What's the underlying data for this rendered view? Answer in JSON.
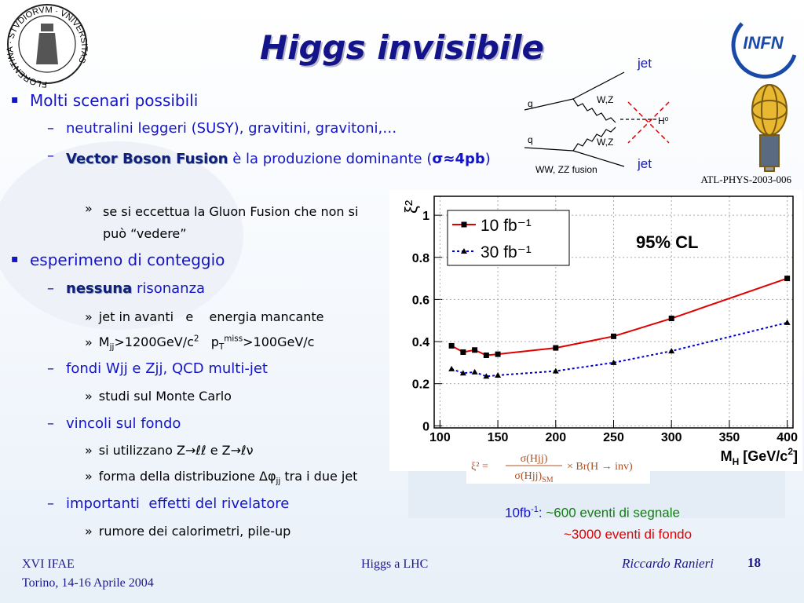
{
  "header": {
    "title": "Higgs invisibile"
  },
  "markers": {
    "l1": "▪",
    "l2": "–",
    "l3": "»"
  },
  "bullets": [
    {
      "text": "Molti scenari possibili"
    },
    {
      "text": "neutralini leggeri (SUSY), gravitini, gravitoni,…"
    },
    {
      "parts": [
        "Vector Boson Fusion",
        " è la produzione dominante (",
        "σ≈4pb",
        ")"
      ]
    },
    {
      "text": "se si eccettua la Gluon Fusion che non si può “vedere”"
    },
    {
      "text": "esperimeno di conteggio"
    },
    {
      "parts": [
        "nessuna",
        " risonanza"
      ]
    },
    {
      "text": "jet in avanti   e    energia mancante"
    },
    {
      "parts": [
        "M",
        "jj",
        ">1200GeV/c",
        "2",
        "   p",
        "T",
        "miss",
        ">100GeV/c"
      ]
    },
    {
      "text": "fondi Wjj e Zjj, QCD multi-jet"
    },
    {
      "text": "studi sul Monte Carlo"
    },
    {
      "text": "vincoli sul fondo"
    },
    {
      "text": "si utilizzano Z→ℓℓ e Z→ℓν"
    },
    {
      "parts": [
        "forma della distribuzione Δφ",
        "jj",
        " tra i due jet"
      ]
    },
    {
      "text": "importanti  effetti del rivelatore"
    },
    {
      "text": "rumore dei calorimetri, pile-up"
    }
  ],
  "diagram": {
    "labels": [
      "jet",
      "q",
      "W,Z",
      "H⁰",
      "q",
      "W,Z",
      "WW, ZZ fusion",
      "jet"
    ],
    "reference": "ATL-PHYS-2003-006"
  },
  "logos": {
    "seal": "FLORENTINA · STVDIORVM · VNIVERSITAS",
    "infn": "INFN"
  },
  "chart_data": {
    "type": "line",
    "x": [
      110,
      120,
      130,
      140,
      150,
      200,
      250,
      300,
      400
    ],
    "series": [
      {
        "name": "10 fb⁻¹",
        "color": "#e00000",
        "marker": "square",
        "line_style": "solid",
        "values": [
          0.38,
          0.35,
          0.36,
          0.335,
          0.34,
          0.37,
          0.425,
          0.51,
          0.7
        ]
      },
      {
        "name": "30 fb⁻¹",
        "color": "#0000cc",
        "marker": "triangle",
        "line_style": "dotted",
        "values": [
          0.27,
          0.25,
          0.255,
          0.235,
          0.24,
          0.26,
          0.3,
          0.355,
          0.49
        ]
      }
    ],
    "xlim": [
      95,
      405
    ],
    "ylim": [
      -0.01,
      1.09
    ],
    "xticks": [
      100,
      150,
      200,
      250,
      300,
      350,
      400
    ],
    "yticks": [
      0,
      0.2,
      0.4,
      0.6,
      0.8,
      1
    ],
    "ylabel": "ξ²",
    "xlabel": [
      "M",
      "H",
      " [GeV/c",
      "2",
      "]"
    ],
    "annotation": "95% CL",
    "grid": true,
    "legend": "upper left"
  },
  "formula": {
    "lhs": "ξ² =",
    "num": "σ(Hjj)",
    "den": "σ(Hjj)",
    "den_sub": "SM",
    "rhs": "× Br(H → inv)"
  },
  "notes": {
    "line1": [
      "10fb",
      "-1",
      ": ",
      "~600 eventi di segnale"
    ],
    "line2": "~3000 eventi di fondo"
  },
  "footer": {
    "left": [
      "XVI IFAE",
      "Torino, 14-16 Aprile 2004"
    ],
    "center": "Higgs a LHC",
    "author": "Riccardo Ranieri",
    "page": "18"
  }
}
